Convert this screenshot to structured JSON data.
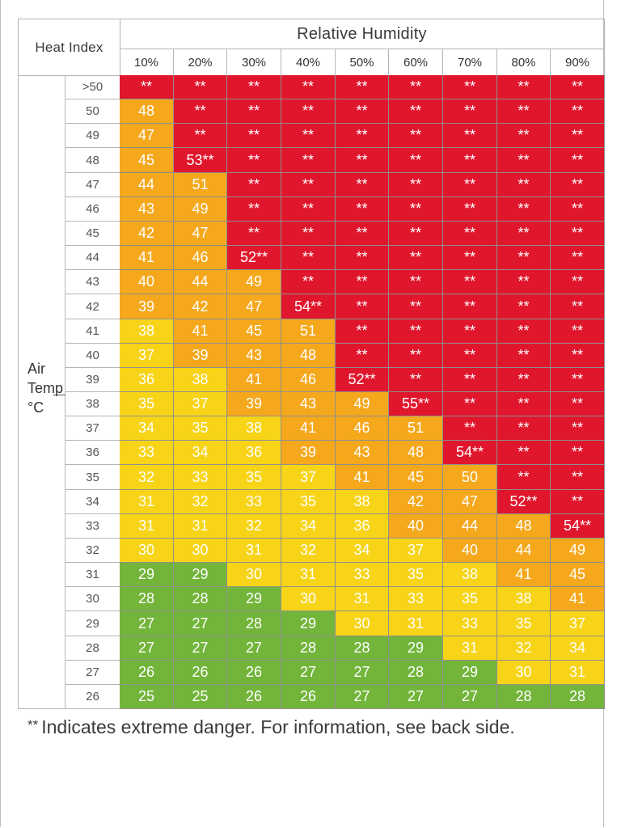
{
  "chart_data": {
    "type": "table",
    "corner_label": "Heat Index",
    "column_group_title": "Relative Humidity",
    "row_group_title": [
      "Air",
      "Temp",
      "°C"
    ],
    "columns": [
      "10%",
      "20%",
      "30%",
      "40%",
      "50%",
      "60%",
      "70%",
      "80%",
      "90%"
    ],
    "rows": [
      {
        "temp": ">50",
        "values": [
          "**",
          "**",
          "**",
          "**",
          "**",
          "**",
          "**",
          "**",
          "**"
        ],
        "levels": [
          "r",
          "r",
          "r",
          "r",
          "r",
          "r",
          "r",
          "r",
          "r"
        ]
      },
      {
        "temp": "50",
        "values": [
          "48",
          "**",
          "**",
          "**",
          "**",
          "**",
          "**",
          "**",
          "**"
        ],
        "levels": [
          "o",
          "r",
          "r",
          "r",
          "r",
          "r",
          "r",
          "r",
          "r"
        ]
      },
      {
        "temp": "49",
        "values": [
          "47",
          "**",
          "**",
          "**",
          "**",
          "**",
          "**",
          "**",
          "**"
        ],
        "levels": [
          "o",
          "r",
          "r",
          "r",
          "r",
          "r",
          "r",
          "r",
          "r"
        ]
      },
      {
        "temp": "48",
        "values": [
          "45",
          "53**",
          "**",
          "**",
          "**",
          "**",
          "**",
          "**",
          "**"
        ],
        "levels": [
          "o",
          "r",
          "r",
          "r",
          "r",
          "r",
          "r",
          "r",
          "r"
        ]
      },
      {
        "temp": "47",
        "values": [
          "44",
          "51",
          "**",
          "**",
          "**",
          "**",
          "**",
          "**",
          "**"
        ],
        "levels": [
          "o",
          "o",
          "r",
          "r",
          "r",
          "r",
          "r",
          "r",
          "r"
        ]
      },
      {
        "temp": "46",
        "values": [
          "43",
          "49",
          "**",
          "**",
          "**",
          "**",
          "**",
          "**",
          "**"
        ],
        "levels": [
          "o",
          "o",
          "r",
          "r",
          "r",
          "r",
          "r",
          "r",
          "r"
        ]
      },
      {
        "temp": "45",
        "values": [
          "42",
          "47",
          "**",
          "**",
          "**",
          "**",
          "**",
          "**",
          "**"
        ],
        "levels": [
          "o",
          "o",
          "r",
          "r",
          "r",
          "r",
          "r",
          "r",
          "r"
        ]
      },
      {
        "temp": "44",
        "values": [
          "41",
          "46",
          "52**",
          "**",
          "**",
          "**",
          "**",
          "**",
          "**"
        ],
        "levels": [
          "o",
          "o",
          "r",
          "r",
          "r",
          "r",
          "r",
          "r",
          "r"
        ]
      },
      {
        "temp": "43",
        "values": [
          "40",
          "44",
          "49",
          "**",
          "**",
          "**",
          "**",
          "**",
          "**"
        ],
        "levels": [
          "o",
          "o",
          "o",
          "r",
          "r",
          "r",
          "r",
          "r",
          "r"
        ]
      },
      {
        "temp": "42",
        "values": [
          "39",
          "42",
          "47",
          "54**",
          "**",
          "**",
          "**",
          "**",
          "**"
        ],
        "levels": [
          "o",
          "o",
          "o",
          "r",
          "r",
          "r",
          "r",
          "r",
          "r"
        ]
      },
      {
        "temp": "41",
        "values": [
          "38",
          "41",
          "45",
          "51",
          "**",
          "**",
          "**",
          "**",
          "**"
        ],
        "levels": [
          "y",
          "o",
          "o",
          "o",
          "r",
          "r",
          "r",
          "r",
          "r"
        ]
      },
      {
        "temp": "40",
        "values": [
          "37",
          "39",
          "43",
          "48",
          "**",
          "**",
          "**",
          "**",
          "**"
        ],
        "levels": [
          "y",
          "o",
          "o",
          "o",
          "r",
          "r",
          "r",
          "r",
          "r"
        ]
      },
      {
        "temp": "39",
        "values": [
          "36",
          "38",
          "41",
          "46",
          "52**",
          "**",
          "**",
          "**",
          "**"
        ],
        "levels": [
          "y",
          "y",
          "o",
          "o",
          "r",
          "r",
          "r",
          "r",
          "r"
        ]
      },
      {
        "temp": "38",
        "values": [
          "35",
          "37",
          "39",
          "43",
          "49",
          "55**",
          "**",
          "**",
          "**"
        ],
        "levels": [
          "y",
          "y",
          "o",
          "o",
          "o",
          "r",
          "r",
          "r",
          "r"
        ]
      },
      {
        "temp": "37",
        "values": [
          "34",
          "35",
          "38",
          "41",
          "46",
          "51",
          "**",
          "**",
          "**"
        ],
        "levels": [
          "y",
          "y",
          "y",
          "o",
          "o",
          "o",
          "r",
          "r",
          "r"
        ]
      },
      {
        "temp": "36",
        "values": [
          "33",
          "34",
          "36",
          "39",
          "43",
          "48",
          "54**",
          "**",
          "**"
        ],
        "levels": [
          "y",
          "y",
          "y",
          "o",
          "o",
          "o",
          "r",
          "r",
          "r"
        ]
      },
      {
        "temp": "35",
        "values": [
          "32",
          "33",
          "35",
          "37",
          "41",
          "45",
          "50",
          "**",
          "**"
        ],
        "levels": [
          "y",
          "y",
          "y",
          "y",
          "o",
          "o",
          "o",
          "r",
          "r"
        ]
      },
      {
        "temp": "34",
        "values": [
          "31",
          "32",
          "33",
          "35",
          "38",
          "42",
          "47",
          "52**",
          "**"
        ],
        "levels": [
          "y",
          "y",
          "y",
          "y",
          "y",
          "o",
          "o",
          "r",
          "r"
        ]
      },
      {
        "temp": "33",
        "values": [
          "31",
          "31",
          "32",
          "34",
          "36",
          "40",
          "44",
          "48",
          "54**"
        ],
        "levels": [
          "y",
          "y",
          "y",
          "y",
          "y",
          "o",
          "o",
          "o",
          "r"
        ]
      },
      {
        "temp": "32",
        "values": [
          "30",
          "30",
          "31",
          "32",
          "34",
          "37",
          "40",
          "44",
          "49"
        ],
        "levels": [
          "y",
          "y",
          "y",
          "y",
          "y",
          "y",
          "o",
          "o",
          "o"
        ]
      },
      {
        "temp": "31",
        "values": [
          "29",
          "29",
          "30",
          "31",
          "33",
          "35",
          "38",
          "41",
          "45"
        ],
        "levels": [
          "g",
          "g",
          "y",
          "y",
          "y",
          "y",
          "y",
          "o",
          "o"
        ]
      },
      {
        "temp": "30",
        "values": [
          "28",
          "28",
          "29",
          "30",
          "31",
          "33",
          "35",
          "38",
          "41"
        ],
        "levels": [
          "g",
          "g",
          "g",
          "y",
          "y",
          "y",
          "y",
          "y",
          "o"
        ]
      },
      {
        "temp": "29",
        "values": [
          "27",
          "27",
          "28",
          "29",
          "30",
          "31",
          "33",
          "35",
          "37"
        ],
        "levels": [
          "g",
          "g",
          "g",
          "g",
          "y",
          "y",
          "y",
          "y",
          "y"
        ]
      },
      {
        "temp": "28",
        "values": [
          "27",
          "27",
          "27",
          "28",
          "28",
          "29",
          "31",
          "32",
          "34"
        ],
        "levels": [
          "g",
          "g",
          "g",
          "g",
          "g",
          "g",
          "y",
          "y",
          "y"
        ]
      },
      {
        "temp": "27",
        "values": [
          "26",
          "26",
          "26",
          "27",
          "27",
          "28",
          "29",
          "30",
          "31"
        ],
        "levels": [
          "g",
          "g",
          "g",
          "g",
          "g",
          "g",
          "g",
          "y",
          "y"
        ]
      },
      {
        "temp": "26",
        "values": [
          "25",
          "25",
          "26",
          "26",
          "27",
          "27",
          "27",
          "28",
          "28"
        ],
        "levels": [
          "g",
          "g",
          "g",
          "g",
          "g",
          "g",
          "g",
          "g",
          "g"
        ]
      }
    ],
    "level_colors": {
      "r": "#e0162d",
      "o": "#f5a81c",
      "y": "#f7d417",
      "g": "#72b53a"
    },
    "footnote_marker": "**",
    "footnote_text": "Indicates extreme danger. For information, see back side."
  }
}
